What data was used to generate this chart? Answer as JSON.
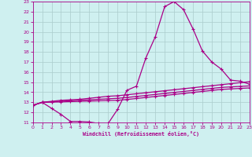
{
  "xlabel": "Windchill (Refroidissement éolien,°C)",
  "xlim": [
    0,
    23
  ],
  "ylim": [
    11,
    23
  ],
  "xticks": [
    0,
    1,
    2,
    3,
    4,
    5,
    6,
    7,
    8,
    9,
    10,
    11,
    12,
    13,
    14,
    15,
    16,
    17,
    18,
    19,
    20,
    21,
    22,
    23
  ],
  "yticks": [
    11,
    12,
    13,
    14,
    15,
    16,
    17,
    18,
    19,
    20,
    21,
    22,
    23
  ],
  "bg_color": "#cff0f0",
  "line_color": "#aa0088",
  "grid_color": "#aacccc",
  "line1_x": [
    0,
    1,
    2,
    3,
    4,
    5,
    6,
    7,
    8,
    9,
    10,
    11,
    12,
    13,
    14,
    15,
    16,
    17,
    18,
    19,
    20,
    21,
    22,
    23
  ],
  "line1_y": [
    12.7,
    13.0,
    12.4,
    11.8,
    11.1,
    11.1,
    11.05,
    10.9,
    10.9,
    12.3,
    14.2,
    14.6,
    17.4,
    19.5,
    22.5,
    23.0,
    22.2,
    20.3,
    18.1,
    17.0,
    16.3,
    15.2,
    15.1,
    14.8
  ],
  "line2_x": [
    0,
    1,
    2,
    3,
    4,
    5,
    6,
    7,
    8,
    9,
    10,
    11,
    12,
    13,
    14,
    15,
    16,
    17,
    18,
    19,
    20,
    21,
    22,
    23
  ],
  "line2_y": [
    12.7,
    13.0,
    13.1,
    13.2,
    13.25,
    13.3,
    13.4,
    13.5,
    13.6,
    13.65,
    13.75,
    13.85,
    13.95,
    14.05,
    14.15,
    14.25,
    14.35,
    14.45,
    14.55,
    14.65,
    14.75,
    14.85,
    14.95,
    15.05
  ],
  "line3_x": [
    0,
    1,
    2,
    3,
    4,
    5,
    6,
    7,
    8,
    9,
    10,
    11,
    12,
    13,
    14,
    15,
    16,
    17,
    18,
    19,
    20,
    21,
    22,
    23
  ],
  "line3_y": [
    12.7,
    13.0,
    13.05,
    13.1,
    13.15,
    13.2,
    13.25,
    13.3,
    13.35,
    13.4,
    13.48,
    13.58,
    13.68,
    13.78,
    13.88,
    13.98,
    14.08,
    14.18,
    14.28,
    14.38,
    14.48,
    14.53,
    14.58,
    14.63
  ],
  "line4_x": [
    0,
    1,
    2,
    3,
    4,
    5,
    6,
    7,
    8,
    9,
    10,
    11,
    12,
    13,
    14,
    15,
    16,
    17,
    18,
    19,
    20,
    21,
    22,
    23
  ],
  "line4_y": [
    12.7,
    13.0,
    13.02,
    13.04,
    13.07,
    13.1,
    13.12,
    13.15,
    13.18,
    13.2,
    13.28,
    13.38,
    13.48,
    13.58,
    13.68,
    13.78,
    13.88,
    13.98,
    14.08,
    14.18,
    14.28,
    14.33,
    14.38,
    14.43
  ]
}
